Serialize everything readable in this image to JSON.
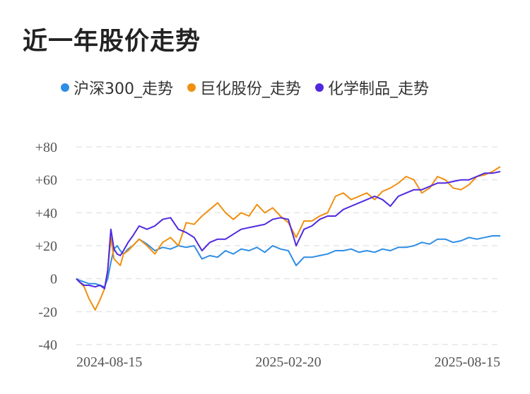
{
  "chart_data": {
    "type": "line",
    "title": "近一年股价走势",
    "xlabel": "",
    "ylabel": "",
    "ylim": [
      -40,
      80
    ],
    "yticks": [
      80,
      60,
      40,
      20,
      0,
      -20,
      -40
    ],
    "ytick_labels": [
      "+80",
      "+60",
      "+40",
      "+20",
      "0",
      "-20",
      "-40"
    ],
    "xtick_labels": [
      "2024-08-15",
      "2025-02-20",
      "2025-08-15"
    ],
    "grid": true,
    "legend_position": "top-left",
    "x": [
      0,
      2,
      5,
      8,
      12,
      15,
      18,
      20,
      22,
      24,
      26,
      28,
      30,
      33,
      36,
      40,
      45,
      50,
      55,
      60,
      65,
      70,
      75,
      80,
      85,
      90,
      95,
      100,
      105,
      110,
      115,
      120,
      125,
      130,
      135,
      140,
      145,
      150,
      155,
      160,
      165,
      170,
      175,
      180,
      185,
      190,
      195,
      200,
      205,
      210,
      215,
      220,
      225,
      230,
      235,
      240,
      245,
      250,
      255,
      260,
      265,
      270
    ],
    "series": [
      {
        "name": "沪深300_走势",
        "color": "#2e8de5",
        "values": [
          0,
          -1,
          -2,
          -3,
          -3,
          -4,
          -5,
          0,
          10,
          18,
          20,
          17,
          15,
          18,
          20,
          24,
          21,
          17,
          19,
          18,
          20,
          19,
          20,
          12,
          14,
          13,
          17,
          15,
          18,
          17,
          19,
          16,
          20,
          18,
          17,
          8,
          13,
          13,
          14,
          15,
          17,
          17,
          18,
          16,
          17,
          16,
          18,
          17,
          19,
          19,
          20,
          22,
          21,
          24,
          24,
          22,
          23,
          25,
          24,
          25,
          26,
          26
        ]
      },
      {
        "name": "巨化股份_走势",
        "color": "#f09010",
        "values": [
          0,
          -2,
          -5,
          -12,
          -19,
          -13,
          -6,
          5,
          25,
          12,
          10,
          8,
          15,
          17,
          20,
          24,
          20,
          15,
          22,
          25,
          20,
          34,
          33,
          38,
          42,
          46,
          40,
          36,
          40,
          38,
          45,
          40,
          43,
          38,
          34,
          25,
          35,
          35,
          38,
          40,
          50,
          52,
          48,
          50,
          52,
          48,
          53,
          55,
          58,
          62,
          60,
          52,
          55,
          62,
          60,
          55,
          54,
          57,
          62,
          63,
          65,
          68
        ]
      },
      {
        "name": "化学制品_走势",
        "color": "#5028e0",
        "values": [
          0,
          -2,
          -4,
          -4,
          -5,
          -4,
          -6,
          5,
          30,
          18,
          15,
          14,
          17,
          22,
          26,
          32,
          30,
          32,
          36,
          37,
          30,
          28,
          25,
          17,
          22,
          24,
          24,
          27,
          30,
          31,
          32,
          33,
          36,
          37,
          36,
          20,
          30,
          32,
          36,
          38,
          38,
          42,
          44,
          46,
          48,
          50,
          48,
          44,
          50,
          52,
          54,
          54,
          56,
          58,
          58,
          59,
          60,
          60,
          62,
          64,
          64,
          65
        ]
      }
    ]
  }
}
